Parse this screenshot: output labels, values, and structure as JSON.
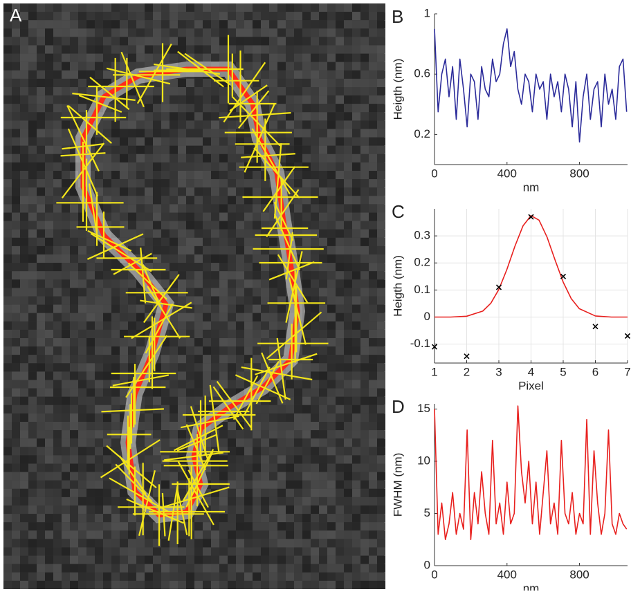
{
  "image_panel": {
    "panel_label": "A"
  },
  "chart_data": [
    {
      "type": "line",
      "panel_label": "B",
      "xlabel": "nm",
      "ylabel": "Heigth (nm)",
      "grid": false,
      "xlim": [
        0,
        1065
      ],
      "ylim": [
        0,
        1
      ],
      "xticks": [
        0,
        400,
        800
      ],
      "yticks": [
        0.2,
        0.6,
        1
      ],
      "series": [
        {
          "color": "#2b2b9a",
          "x": [
            0,
            20,
            40,
            60,
            80,
            100,
            120,
            140,
            160,
            180,
            200,
            220,
            240,
            260,
            280,
            300,
            320,
            340,
            360,
            380,
            400,
            420,
            440,
            460,
            480,
            500,
            520,
            540,
            560,
            580,
            600,
            620,
            640,
            660,
            680,
            700,
            720,
            740,
            760,
            780,
            800,
            820,
            840,
            860,
            880,
            900,
            920,
            940,
            960,
            980,
            1000,
            1020,
            1040,
            1060
          ],
          "values": [
            0.9,
            0.35,
            0.6,
            0.7,
            0.45,
            0.65,
            0.3,
            0.7,
            0.5,
            0.25,
            0.6,
            0.55,
            0.3,
            0.65,
            0.5,
            0.45,
            0.7,
            0.55,
            0.6,
            0.8,
            0.9,
            0.65,
            0.75,
            0.5,
            0.4,
            0.6,
            0.55,
            0.35,
            0.6,
            0.5,
            0.55,
            0.3,
            0.6,
            0.45,
            0.55,
            0.35,
            0.6,
            0.5,
            0.25,
            0.55,
            0.15,
            0.45,
            0.6,
            0.3,
            0.5,
            0.55,
            0.25,
            0.6,
            0.4,
            0.5,
            0.3,
            0.65,
            0.7,
            0.35
          ]
        }
      ]
    },
    {
      "type": "line",
      "panel_label": "C",
      "xlabel": "Pixel",
      "ylabel": "Heigth (nm)",
      "grid": true,
      "xlim": [
        1,
        7
      ],
      "ylim": [
        -0.17,
        0.4
      ],
      "xticks": [
        1,
        2,
        3,
        4,
        5,
        6,
        7
      ],
      "yticks": [
        -0.1,
        0,
        0.1,
        0.2,
        0.3
      ],
      "series": [
        {
          "color": "#e8201e",
          "x": [
            1,
            1.5,
            2,
            2.5,
            2.75,
            3,
            3.25,
            3.5,
            3.75,
            4,
            4.25,
            4.5,
            4.75,
            5,
            5.25,
            5.5,
            6,
            6.5,
            7
          ],
          "values": [
            0,
            0,
            0.003,
            0.022,
            0.051,
            0.102,
            0.176,
            0.262,
            0.337,
            0.375,
            0.358,
            0.295,
            0.21,
            0.129,
            0.068,
            0.031,
            0.004,
            0,
            0
          ]
        },
        {
          "color": "#000000",
          "marker": "x",
          "x": [
            1,
            2,
            3,
            4,
            5,
            6,
            7
          ],
          "values": [
            -0.11,
            -0.145,
            0.11,
            0.37,
            0.15,
            -0.035,
            -0.07
          ]
        }
      ]
    },
    {
      "type": "line",
      "panel_label": "D",
      "xlabel": "nm",
      "ylabel": "FWHM (nm)",
      "grid": false,
      "xlim": [
        0,
        1065
      ],
      "ylim": [
        0,
        15.5
      ],
      "xticks": [
        0,
        400,
        800
      ],
      "yticks": [
        0,
        5,
        10,
        15
      ],
      "series": [
        {
          "color": "#e8201e",
          "x": [
            0,
            20,
            40,
            60,
            80,
            100,
            120,
            140,
            160,
            180,
            200,
            220,
            240,
            260,
            280,
            300,
            320,
            340,
            360,
            380,
            400,
            420,
            440,
            460,
            480,
            500,
            520,
            540,
            560,
            580,
            600,
            620,
            640,
            660,
            680,
            700,
            720,
            740,
            760,
            780,
            800,
            820,
            840,
            860,
            880,
            900,
            920,
            940,
            960,
            980,
            1000,
            1020,
            1040,
            1060
          ],
          "values": [
            15,
            3,
            6,
            2.5,
            4,
            7,
            3,
            5,
            3.5,
            13,
            2.5,
            7,
            4,
            9,
            5,
            3,
            12,
            4,
            6,
            3,
            8,
            4,
            5,
            15.3,
            9,
            6,
            10,
            4,
            8,
            3,
            7,
            11,
            4,
            6,
            3,
            12,
            5,
            4,
            7,
            3,
            5,
            4,
            14,
            3,
            11,
            6,
            3,
            5,
            13,
            4,
            3,
            5,
            4,
            3.5
          ]
        }
      ]
    }
  ]
}
